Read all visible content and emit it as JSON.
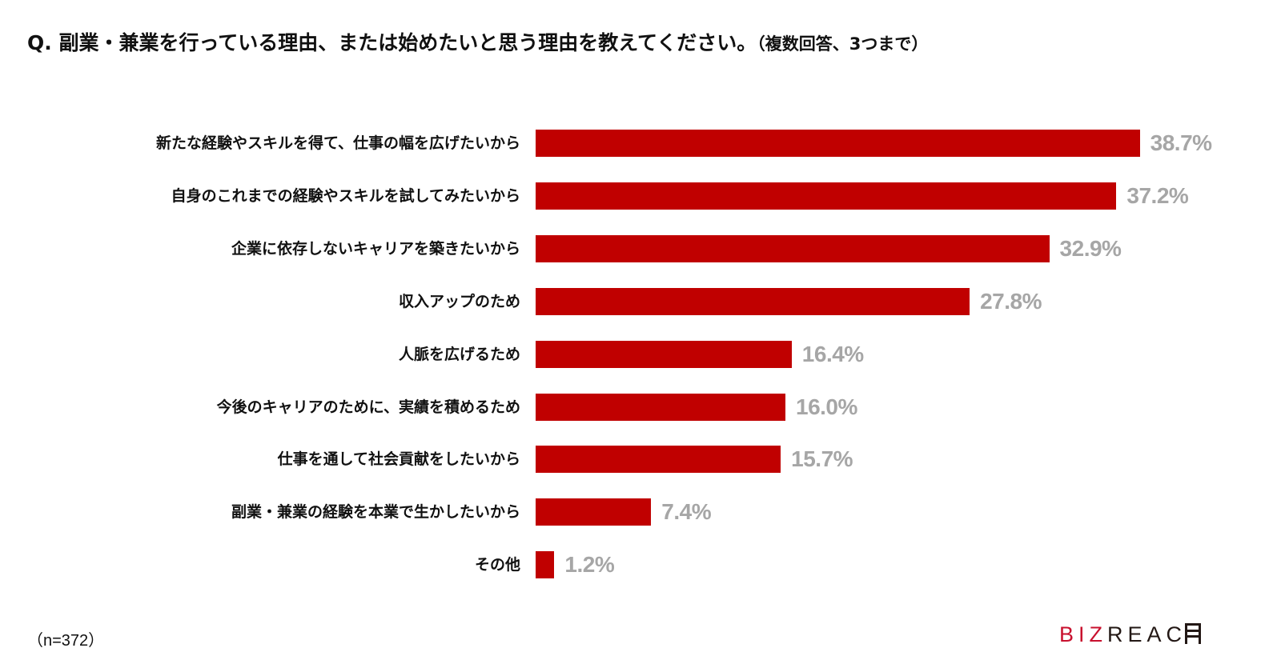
{
  "title": {
    "main": "Q. 副業・兼業を行っている理由、または始めたいと思う理由を教えてください。",
    "note": "（複数回答、3つまで）"
  },
  "sample_note": "（n=372）",
  "logo": {
    "biz": "BIZ",
    "reach": "REAC",
    "icon": "bizreach-h-mark-icon"
  },
  "colors": {
    "bar": "#c00000",
    "value_label": "#a6a6a6",
    "logo_red": "#c8102e",
    "text": "#111111"
  },
  "chart_data": {
    "type": "bar",
    "orientation": "horizontal",
    "title": "Q. 副業・兼業を行っている理由、または始めたいと思う理由を教えてください。（複数回答、3つまで）",
    "xlabel": "",
    "ylabel": "",
    "unit": "%",
    "n": 372,
    "grid": false,
    "legend": null,
    "categories": [
      "新たな経験やスキルを得て、仕事の幅を広げたいから",
      "自身のこれまでの経験やスキルを試してみたいから",
      "企業に依存しないキャリアを築きたいから",
      "収入アップのため",
      "人脈を広げるため",
      "今後のキャリアのために、実績を積めるため",
      "仕事を通して社会貢献をしたいから",
      "副業・兼業の経験を本業で生かしたいから",
      "その他"
    ],
    "values": [
      38.7,
      37.2,
      32.9,
      27.8,
      16.4,
      16.0,
      15.7,
      7.4,
      1.2
    ],
    "value_labels": [
      "38.7%",
      "37.2%",
      "32.9%",
      "27.8%",
      "16.4%",
      "16.0%",
      "15.7%",
      "7.4%",
      "1.2%"
    ]
  }
}
